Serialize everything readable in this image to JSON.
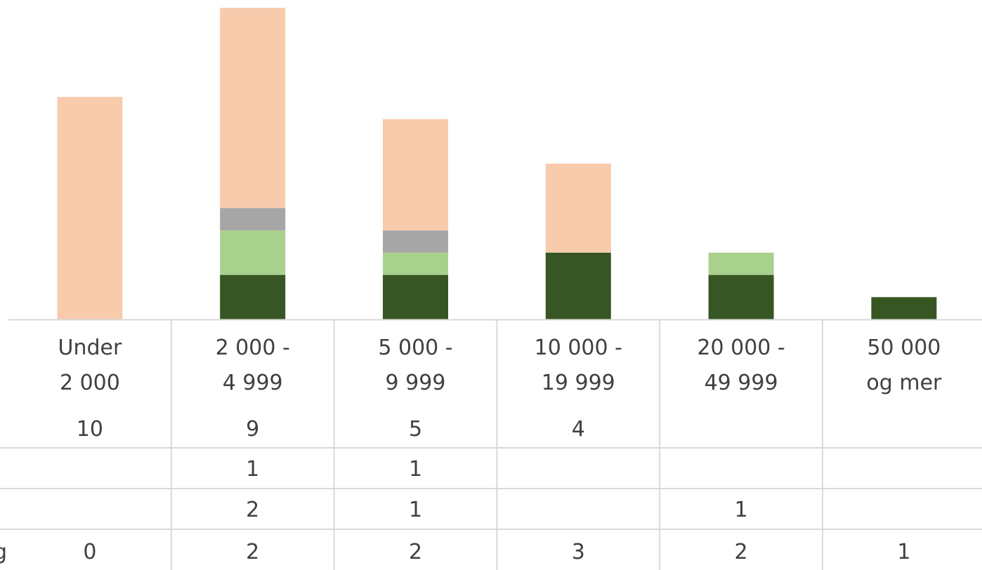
{
  "chart_data": {
    "type": "bar",
    "stacked": true,
    "categories": [
      [
        "Under",
        "2 000"
      ],
      [
        "2 000 -",
        "4 999"
      ],
      [
        "5 000 -",
        "9 999"
      ],
      [
        "10 000 -",
        "19 999"
      ],
      [
        "20 000 -",
        "49 999"
      ],
      [
        "50 000",
        "og mer"
      ]
    ],
    "series": [
      {
        "values": [
          0,
          2,
          2,
          3,
          2,
          1
        ],
        "color": "#375623",
        "row_label_fragment": "g"
      },
      {
        "values": [
          null,
          2,
          1,
          null,
          1,
          null
        ],
        "color": "#a9d18e"
      },
      {
        "values": [
          null,
          1,
          1,
          null,
          null,
          null
        ],
        "color": "#a6a6a6"
      },
      {
        "values": [
          10,
          9,
          5,
          4,
          null,
          null
        ],
        "color": "#f8cbad"
      }
    ],
    "grid": false,
    "legend": "none",
    "data_table": true
  }
}
